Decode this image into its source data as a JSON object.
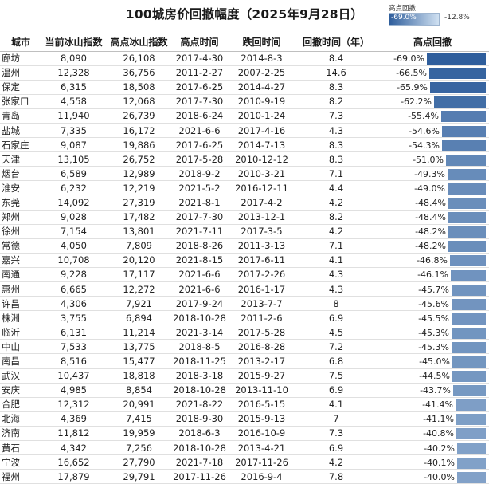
{
  "title": "100城房价回撤幅度（2025年9月28日）",
  "legend": {
    "title": "高点回撤",
    "min_label": "-69.0%",
    "max_label": "-12.8%",
    "min_color": "#2f5e9c",
    "max_color": "#cfe0f1"
  },
  "headers": {
    "city": "城市",
    "current": "当前冰山指数",
    "peak": "高点冰山指数",
    "peak_time": "高点时间",
    "drop_time": "跌回时间",
    "duration": "回撤时间（年）",
    "drawdown": "高点回撤"
  },
  "chart_data": {
    "type": "table",
    "title": "100城房价回撤幅度（2025年9月28日）",
    "columns": [
      "城市",
      "当前冰山指数",
      "高点冰山指数",
      "高点时间",
      "跌回时间",
      "回撤时间（年）",
      "高点回撤"
    ],
    "rows": [
      {
        "city": "廊坊",
        "current": "8,090",
        "peak": "26,108",
        "peak_time": "2017-4-30",
        "drop_time": "2014-8-3",
        "duration": "8.4",
        "drawdown": -69.0
      },
      {
        "city": "温州",
        "current": "12,328",
        "peak": "36,756",
        "peak_time": "2011-2-27",
        "drop_time": "2007-2-25",
        "duration": "14.6",
        "drawdown": -66.5
      },
      {
        "city": "保定",
        "current": "6,315",
        "peak": "18,508",
        "peak_time": "2017-6-25",
        "drop_time": "2014-4-27",
        "duration": "8.3",
        "drawdown": -65.9
      },
      {
        "city": "张家口",
        "current": "4,558",
        "peak": "12,068",
        "peak_time": "2017-7-30",
        "drop_time": "2010-9-19",
        "duration": "8.2",
        "drawdown": -62.2
      },
      {
        "city": "青岛",
        "current": "11,940",
        "peak": "26,739",
        "peak_time": "2018-6-24",
        "drop_time": "2010-1-24",
        "duration": "7.3",
        "drawdown": -55.4
      },
      {
        "city": "盐城",
        "current": "7,335",
        "peak": "16,172",
        "peak_time": "2021-6-6",
        "drop_time": "2017-4-16",
        "duration": "4.3",
        "drawdown": -54.6
      },
      {
        "city": "石家庄",
        "current": "9,087",
        "peak": "19,886",
        "peak_time": "2017-6-25",
        "drop_time": "2014-7-13",
        "duration": "8.3",
        "drawdown": -54.3
      },
      {
        "city": "天津",
        "current": "13,105",
        "peak": "26,752",
        "peak_time": "2017-5-28",
        "drop_time": "2010-12-12",
        "duration": "8.3",
        "drawdown": -51.0
      },
      {
        "city": "烟台",
        "current": "6,589",
        "peak": "12,989",
        "peak_time": "2018-9-2",
        "drop_time": "2010-3-21",
        "duration": "7.1",
        "drawdown": -49.3
      },
      {
        "city": "淮安",
        "current": "6,232",
        "peak": "12,219",
        "peak_time": "2021-5-2",
        "drop_time": "2016-12-11",
        "duration": "4.4",
        "drawdown": -49.0
      },
      {
        "city": "东莞",
        "current": "14,092",
        "peak": "27,319",
        "peak_time": "2021-8-1",
        "drop_time": "2017-4-2",
        "duration": "4.2",
        "drawdown": -48.4
      },
      {
        "city": "郑州",
        "current": "9,028",
        "peak": "17,482",
        "peak_time": "2017-7-30",
        "drop_time": "2013-12-1",
        "duration": "8.2",
        "drawdown": -48.4
      },
      {
        "city": "徐州",
        "current": "7,154",
        "peak": "13,801",
        "peak_time": "2021-7-11",
        "drop_time": "2017-3-5",
        "duration": "4.2",
        "drawdown": -48.2
      },
      {
        "city": "常德",
        "current": "4,050",
        "peak": "7,809",
        "peak_time": "2018-8-26",
        "drop_time": "2011-3-13",
        "duration": "7.1",
        "drawdown": -48.2
      },
      {
        "city": "嘉兴",
        "current": "10,708",
        "peak": "20,120",
        "peak_time": "2021-8-15",
        "drop_time": "2017-6-11",
        "duration": "4.1",
        "drawdown": -46.8
      },
      {
        "city": "南通",
        "current": "9,228",
        "peak": "17,117",
        "peak_time": "2021-6-6",
        "drop_time": "2017-2-26",
        "duration": "4.3",
        "drawdown": -46.1
      },
      {
        "city": "惠州",
        "current": "6,665",
        "peak": "12,272",
        "peak_time": "2021-6-6",
        "drop_time": "2016-1-17",
        "duration": "4.3",
        "drawdown": -45.7
      },
      {
        "city": "许昌",
        "current": "4,306",
        "peak": "7,921",
        "peak_time": "2017-9-24",
        "drop_time": "2013-7-7",
        "duration": "8",
        "drawdown": -45.6
      },
      {
        "city": "株洲",
        "current": "3,755",
        "peak": "6,894",
        "peak_time": "2018-10-28",
        "drop_time": "2011-2-6",
        "duration": "6.9",
        "drawdown": -45.5
      },
      {
        "city": "临沂",
        "current": "6,131",
        "peak": "11,214",
        "peak_time": "2021-3-14",
        "drop_time": "2017-5-28",
        "duration": "4.5",
        "drawdown": -45.3
      },
      {
        "city": "中山",
        "current": "7,533",
        "peak": "13,775",
        "peak_time": "2018-8-5",
        "drop_time": "2016-8-28",
        "duration": "7.2",
        "drawdown": -45.3
      },
      {
        "city": "南昌",
        "current": "8,516",
        "peak": "15,477",
        "peak_time": "2018-11-25",
        "drop_time": "2013-2-17",
        "duration": "6.8",
        "drawdown": -45.0
      },
      {
        "city": "武汉",
        "current": "10,437",
        "peak": "18,818",
        "peak_time": "2018-3-18",
        "drop_time": "2015-9-27",
        "duration": "7.5",
        "drawdown": -44.5
      },
      {
        "city": "安庆",
        "current": "4,985",
        "peak": "8,854",
        "peak_time": "2018-10-28",
        "drop_time": "2013-11-10",
        "duration": "6.9",
        "drawdown": -43.7
      },
      {
        "city": "合肥",
        "current": "12,312",
        "peak": "20,991",
        "peak_time": "2021-8-22",
        "drop_time": "2016-5-15",
        "duration": "4.1",
        "drawdown": -41.4
      },
      {
        "city": "北海",
        "current": "4,369",
        "peak": "7,415",
        "peak_time": "2018-9-30",
        "drop_time": "2015-9-13",
        "duration": "7",
        "drawdown": -41.1
      },
      {
        "city": "济南",
        "current": "11,812",
        "peak": "19,959",
        "peak_time": "2018-6-3",
        "drop_time": "2016-10-9",
        "duration": "7.3",
        "drawdown": -40.8
      },
      {
        "city": "黄石",
        "current": "4,342",
        "peak": "7,256",
        "peak_time": "2018-10-28",
        "drop_time": "2013-4-21",
        "duration": "6.9",
        "drawdown": -40.2
      },
      {
        "city": "宁波",
        "current": "16,652",
        "peak": "27,790",
        "peak_time": "2021-7-18",
        "drop_time": "2017-11-26",
        "duration": "4.2",
        "drawdown": -40.1
      },
      {
        "city": "福州",
        "current": "17,879",
        "peak": "29,791",
        "peak_time": "2017-11-26",
        "drop_time": "2016-9-4",
        "duration": "7.8",
        "drawdown": -40.0
      }
    ],
    "drawdown_scale": {
      "min": -69.0,
      "max": -12.8
    }
  }
}
